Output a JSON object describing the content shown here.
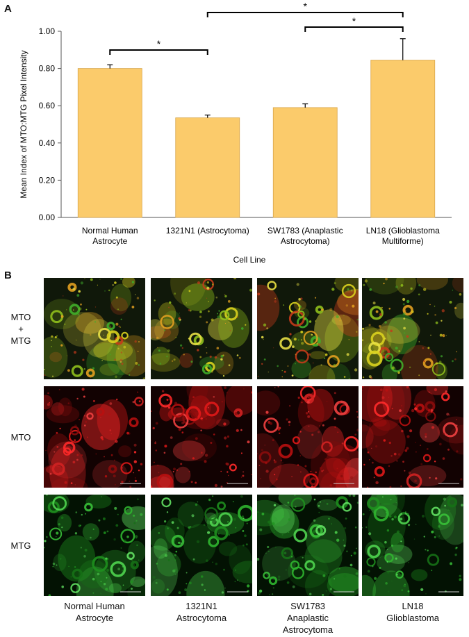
{
  "panel_a_label": "A",
  "panel_b_label": "B",
  "chart_data": {
    "type": "bar",
    "categories": [
      [
        "Normal Human",
        "Astrocyte"
      ],
      [
        "1321N1 (Astrocytoma)"
      ],
      [
        "SW1783 (Anaplastic",
        "Astrocytoma)"
      ],
      [
        "LN18 (Glioblastoma",
        "Multiforme)"
      ]
    ],
    "values": [
      0.8,
      0.535,
      0.59,
      0.845
    ],
    "errors": [
      0.02,
      0.015,
      0.02,
      0.115
    ],
    "ylabel": "Mean Index of MTO:MTG Pixel Intensity",
    "xlabel": "Cell Line",
    "ylim": [
      0,
      1.0
    ],
    "yticks": [
      "0.00",
      "0.20",
      "0.40",
      "0.60",
      "0.80",
      "1.00"
    ],
    "bar_color": "#FBCB6B",
    "significance": [
      {
        "from": 0,
        "to": 1,
        "label": "*"
      },
      {
        "from": 1,
        "to": 3,
        "label": "*"
      },
      {
        "from": 2,
        "to": 3,
        "label": "*"
      }
    ]
  },
  "micrographs": {
    "rows": [
      {
        "label": [
          "MTO",
          "+",
          "MTG"
        ],
        "kind": "merge"
      },
      {
        "label": [
          "MTO"
        ],
        "kind": "red"
      },
      {
        "label": [
          "MTG"
        ],
        "kind": "green"
      }
    ],
    "columns": [
      [
        "Normal Human",
        "Astrocyte"
      ],
      [
        "1321N1",
        "Astrocytoma"
      ],
      [
        "SW1783",
        "Anaplastic",
        "Astrocytoma"
      ],
      [
        "LN18",
        "Glioblastoma"
      ]
    ]
  }
}
